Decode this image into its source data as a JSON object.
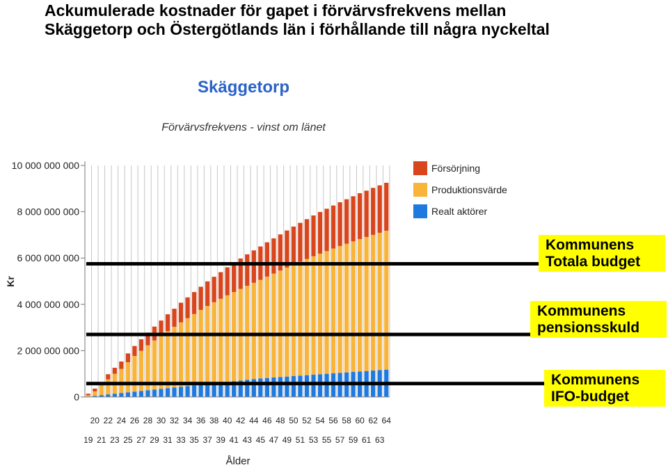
{
  "title": "Ackumulerade kostnader för gapet i förvärvsfrekvens mellan\nSkäggetorp och Östergötlands län i förhållande till några nyckeltal",
  "chart_data": {
    "type": "bar",
    "stacked": true,
    "title": "Skäggetorp",
    "subtitle": "Förvärvsfrekvens - vinst om länet",
    "xlabel": "Ålder",
    "ylabel": "Kr",
    "ylim": [
      0,
      10000000000
    ],
    "yticks": [
      0,
      2000000000,
      4000000000,
      6000000000,
      8000000000,
      10000000000
    ],
    "ytick_labels": [
      "0",
      "2 000 000 000",
      "4 000 000 000",
      "6 000 000 000",
      "8 000 000 000",
      "10 000 000 000"
    ],
    "grid": "vertical",
    "legend_position": "top-right",
    "categories": [
      19,
      20,
      21,
      22,
      23,
      24,
      25,
      26,
      27,
      28,
      29,
      30,
      31,
      32,
      33,
      34,
      35,
      36,
      37,
      38,
      39,
      40,
      41,
      42,
      43,
      44,
      45,
      46,
      47,
      48,
      49,
      50,
      51,
      52,
      53,
      54,
      55,
      56,
      57,
      58,
      59,
      60,
      61,
      62,
      63,
      64
    ],
    "series": [
      {
        "name": "Realt aktörer",
        "color": "#1f7ae0",
        "values": [
          0.02,
          0.05,
          0.08,
          0.11,
          0.14,
          0.17,
          0.2,
          0.23,
          0.26,
          0.29,
          0.32,
          0.35,
          0.38,
          0.41,
          0.44,
          0.47,
          0.5,
          0.53,
          0.56,
          0.59,
          0.62,
          0.65,
          0.68,
          0.71,
          0.74,
          0.77,
          0.8,
          0.82,
          0.84,
          0.86,
          0.88,
          0.9,
          0.92,
          0.94,
          0.96,
          0.98,
          1.0,
          1.02,
          1.04,
          1.06,
          1.08,
          1.1,
          1.12,
          1.14,
          1.16,
          1.18
        ]
      },
      {
        "name": "Produktionsvärde",
        "color": "#f9b43a",
        "values": [
          0.05,
          0.19,
          0.42,
          0.65,
          0.86,
          1.04,
          1.3,
          1.54,
          1.73,
          1.94,
          2.12,
          2.29,
          2.46,
          2.62,
          2.78,
          2.93,
          3.08,
          3.23,
          3.37,
          3.5,
          3.62,
          3.74,
          3.85,
          3.96,
          4.06,
          4.16,
          4.26,
          4.38,
          4.49,
          4.6,
          4.71,
          4.82,
          4.92,
          5.02,
          5.12,
          5.21,
          5.3,
          5.39,
          5.48,
          5.56,
          5.64,
          5.72,
          5.79,
          5.86,
          5.93,
          6.0
        ]
      },
      {
        "name": "Försörjning",
        "color": "#d9451c",
        "values": [
          0.07,
          0.12,
          0.14,
          0.22,
          0.26,
          0.32,
          0.38,
          0.43,
          0.5,
          0.55,
          0.6,
          0.66,
          0.73,
          0.78,
          0.85,
          0.9,
          0.95,
          1.0,
          1.06,
          1.1,
          1.15,
          1.21,
          1.26,
          1.31,
          1.36,
          1.4,
          1.44,
          1.48,
          1.52,
          1.56,
          1.6,
          1.64,
          1.68,
          1.72,
          1.76,
          1.8,
          1.83,
          1.86,
          1.89,
          1.92,
          1.95,
          1.98,
          2.0,
          2.03,
          2.05,
          2.07
        ]
      }
    ],
    "value_unit": "miljarder kr",
    "reference_lines": [
      {
        "label": "Kommunens\nTotala budget",
        "value": 5750000000
      },
      {
        "label": "Kommunens\npensionsskuld",
        "value": 2700000000
      },
      {
        "label": "Kommunens\nIFO-budget",
        "value": 580000000
      }
    ]
  }
}
